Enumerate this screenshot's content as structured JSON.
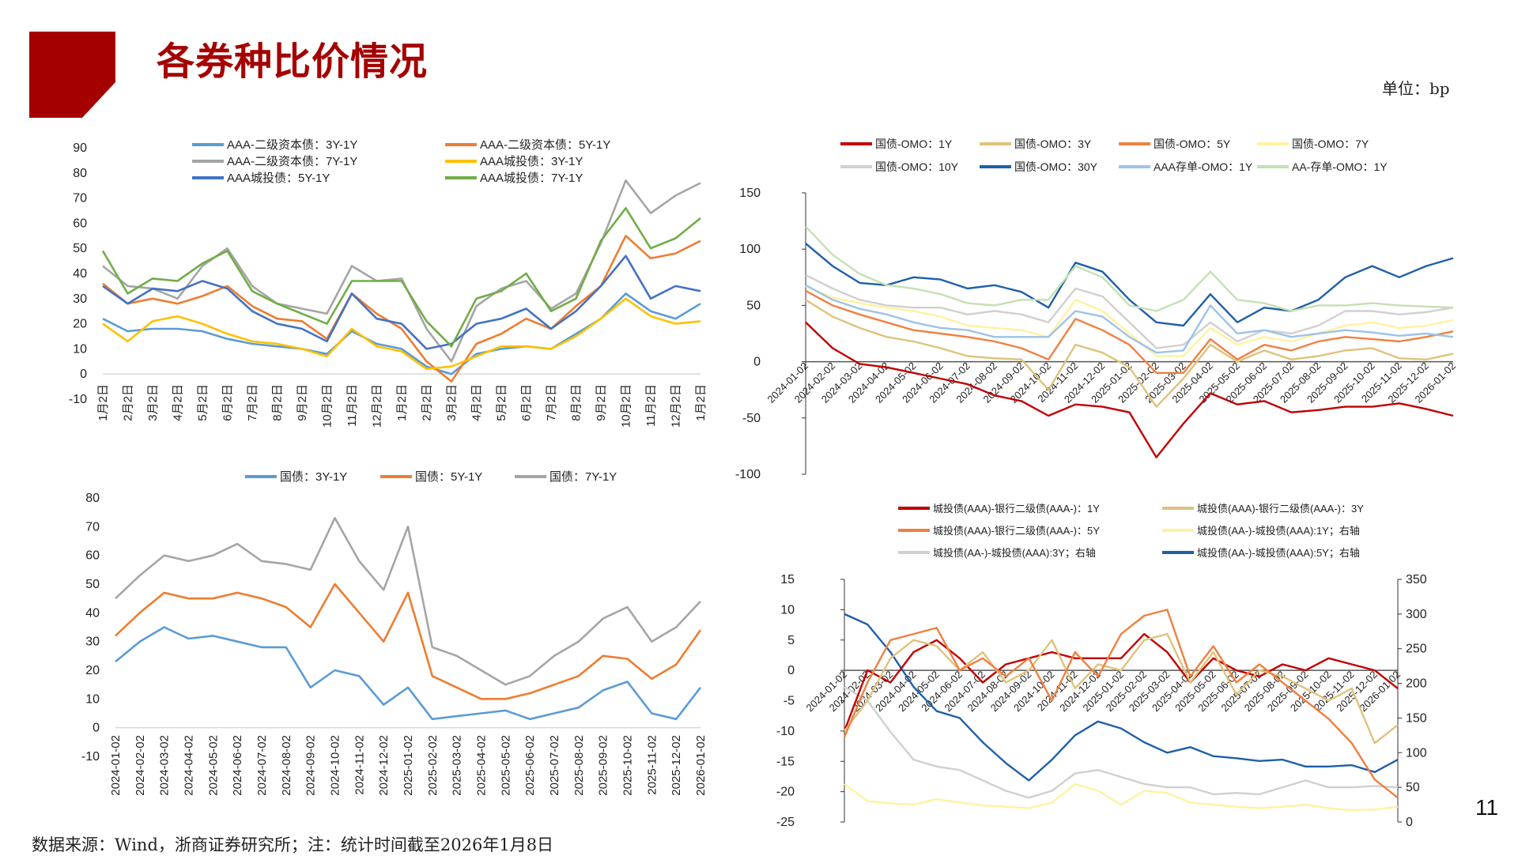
{
  "header": {
    "title": "各券种比价情况",
    "unit": "单位：bp"
  },
  "footer": {
    "source": "数据来源：Wind，浙商证券研究所；注：统计时间截至2026年1月8日",
    "page_number": "11"
  },
  "brand_color": "#a50000",
  "chart_data": [
    {
      "type": "line",
      "x": [
        "1月2日",
        "2月2日",
        "3月2日",
        "4月2日",
        "5月2日",
        "6月2日",
        "7月2日",
        "8月2日",
        "9月2日",
        "10月2日",
        "11月2日",
        "12月2日",
        "1月2日",
        "2月2日",
        "3月2日",
        "4月2日",
        "5月2日",
        "6月2日",
        "7月2日",
        "8月2日",
        "9月2日",
        "10月2日",
        "11月2日",
        "12月2日",
        "1月2日"
      ],
      "ylim": [
        -10,
        90
      ],
      "grid": false,
      "legend": "top",
      "series": [
        {
          "name": "AAA-二级资本债：3Y-1Y",
          "color": "#5b9bd5",
          "values": [
            22,
            17,
            18,
            18,
            17,
            14,
            12,
            11,
            10,
            8,
            17,
            12,
            10,
            3,
            0,
            8,
            10,
            11,
            10,
            16,
            22,
            32,
            25,
            22,
            28
          ]
        },
        {
          "name": "AAA-二级资本债：5Y-1Y",
          "color": "#ed7d31",
          "values": [
            36,
            28,
            30,
            28,
            31,
            35,
            27,
            22,
            21,
            14,
            32,
            24,
            18,
            5,
            -3,
            12,
            16,
            22,
            18,
            27,
            35,
            55,
            46,
            48,
            53
          ]
        },
        {
          "name": "AAA-二级资本债：7Y-1Y",
          "color": "#a5a5a5",
          "values": [
            43,
            35,
            34,
            30,
            43,
            50,
            35,
            28,
            26,
            24,
            43,
            37,
            38,
            18,
            5,
            27,
            34,
            37,
            26,
            32,
            52,
            77,
            64,
            71,
            76
          ]
        },
        {
          "name": "AAA城投债：3Y-1Y",
          "color": "#ffc000",
          "values": [
            20,
            13,
            21,
            23,
            20,
            16,
            13,
            12,
            10,
            7,
            18,
            11,
            9,
            2,
            3,
            7,
            11,
            11,
            10,
            15,
            22,
            30,
            23,
            20,
            21
          ]
        },
        {
          "name": "AAA城投债：5Y-1Y",
          "color": "#4472c4",
          "values": [
            35,
            28,
            34,
            33,
            37,
            34,
            25,
            20,
            18,
            13,
            32,
            22,
            20,
            10,
            12,
            20,
            22,
            26,
            18,
            25,
            35,
            47,
            30,
            35,
            33
          ]
        },
        {
          "name": "AAA城投债：7Y-1Y",
          "color": "#70ad47",
          "values": [
            49,
            32,
            38,
            37,
            44,
            49,
            33,
            28,
            24,
            20,
            37,
            37,
            37,
            21,
            11,
            30,
            33,
            40,
            25,
            30,
            53,
            66,
            50,
            54,
            62
          ]
        }
      ]
    },
    {
      "type": "line",
      "x": [
        "2024-01-02",
        "2024-02-02",
        "2024-03-02",
        "2024-04-02",
        "2024-05-02",
        "2024-06-02",
        "2024-07-02",
        "2024-08-02",
        "2024-09-02",
        "2024-10-02",
        "2024-11-02",
        "2024-12-02",
        "2025-01-02",
        "2025-02-02",
        "2025-03-02",
        "2025-04-02",
        "2025-05-02",
        "2025-06-02",
        "2025-07-02",
        "2025-08-02",
        "2025-09-02",
        "2025-10-02",
        "2025-11-02",
        "2025-12-02",
        "2026-01-02"
      ],
      "ylim": [
        -100,
        150
      ],
      "grid": false,
      "legend": "top",
      "series": [
        {
          "name": "国债-OMO：1Y",
          "color": "#c00000",
          "values": [
            35,
            12,
            -2,
            -5,
            -10,
            -15,
            -20,
            -30,
            -35,
            -48,
            -38,
            -40,
            -45,
            -85,
            -55,
            -28,
            -38,
            -35,
            -45,
            -43,
            -40,
            -40,
            -37,
            -42,
            -48
          ]
        },
        {
          "name": "国债-OMO：3Y",
          "color": "#dfc27d",
          "values": [
            55,
            40,
            30,
            22,
            18,
            12,
            5,
            3,
            2,
            -25,
            15,
            8,
            -5,
            -40,
            -15,
            15,
            0,
            10,
            2,
            5,
            10,
            12,
            3,
            2,
            7
          ]
        },
        {
          "name": "国债-OMO：5Y",
          "color": "#f08040",
          "values": [
            63,
            50,
            42,
            35,
            28,
            25,
            22,
            18,
            12,
            2,
            38,
            28,
            15,
            -10,
            -10,
            20,
            2,
            15,
            10,
            18,
            22,
            20,
            18,
            22,
            27
          ]
        },
        {
          "name": "国债-OMO：7Y",
          "color": "#fff2a0",
          "values": [
            67,
            57,
            52,
            48,
            45,
            40,
            32,
            30,
            28,
            22,
            55,
            45,
            25,
            5,
            5,
            30,
            15,
            22,
            18,
            25,
            32,
            35,
            30,
            32,
            37
          ]
        },
        {
          "name": "国债-OMO：10Y",
          "color": "#d0d0d0",
          "values": [
            77,
            65,
            55,
            50,
            48,
            48,
            42,
            45,
            42,
            35,
            65,
            58,
            35,
            12,
            15,
            35,
            18,
            28,
            25,
            32,
            45,
            45,
            42,
            44,
            48
          ]
        },
        {
          "name": "国债-OMO：30Y",
          "color": "#1f5fa8",
          "values": [
            105,
            85,
            70,
            68,
            75,
            73,
            65,
            68,
            62,
            48,
            88,
            80,
            55,
            35,
            32,
            60,
            35,
            48,
            45,
            55,
            75,
            85,
            75,
            85,
            92
          ]
        },
        {
          "name": "AAA存单-OMO：1Y",
          "color": "#9dc3e6",
          "values": [
            68,
            55,
            47,
            42,
            35,
            30,
            28,
            22,
            22,
            22,
            45,
            40,
            22,
            8,
            10,
            50,
            25,
            28,
            22,
            25,
            28,
            26,
            23,
            25,
            22
          ]
        },
        {
          "name": "AA-存单-OMO：1Y",
          "color": "#c5e0b4",
          "values": [
            120,
            95,
            78,
            68,
            65,
            60,
            52,
            50,
            55,
            55,
            85,
            75,
            50,
            45,
            55,
            80,
            55,
            52,
            45,
            50,
            50,
            52,
            50,
            49,
            48
          ]
        }
      ]
    },
    {
      "type": "line",
      "x": [
        "2024-01-02",
        "2024-02-02",
        "2024-03-02",
        "2024-04-02",
        "2024-05-02",
        "2024-06-02",
        "2024-07-02",
        "2024-08-02",
        "2024-09-02",
        "2024-10-02",
        "2024-11-02",
        "2024-12-02",
        "2025-01-02",
        "2025-02-02",
        "2025-03-02",
        "2025-04-02",
        "2025-05-02",
        "2025-06-02",
        "2025-07-02",
        "2025-08-02",
        "2025-09-02",
        "2025-10-02",
        "2025-11-02",
        "2025-12-02",
        "2026-01-02"
      ],
      "ylim": [
        -10,
        80
      ],
      "grid": false,
      "legend": "top",
      "series": [
        {
          "name": "国债：3Y-1Y",
          "color": "#5b9bd5",
          "values": [
            23,
            30,
            35,
            31,
            32,
            30,
            28,
            28,
            14,
            20,
            18,
            8,
            14,
            3,
            4,
            5,
            6,
            3,
            5,
            7,
            13,
            16,
            5,
            3,
            14
          ]
        },
        {
          "name": "国债：5Y-1Y",
          "color": "#ed7d31",
          "values": [
            32,
            40,
            47,
            45,
            45,
            47,
            45,
            42,
            35,
            50,
            40,
            30,
            47,
            18,
            14,
            10,
            10,
            12,
            15,
            18,
            25,
            24,
            17,
            22,
            34
          ]
        },
        {
          "name": "国债：7Y-1Y",
          "color": "#a5a5a5",
          "values": [
            45,
            53,
            60,
            58,
            60,
            64,
            58,
            57,
            55,
            73,
            58,
            48,
            70,
            28,
            25,
            20,
            15,
            18,
            25,
            30,
            38,
            42,
            30,
            35,
            44
          ]
        }
      ]
    },
    {
      "type": "line",
      "x": [
        "2024-01-02",
        "2024-02-02",
        "2024-03-02",
        "2024-04-02",
        "2024-05-02",
        "2024-06-02",
        "2024-07-02",
        "2024-08-02",
        "2024-09-02",
        "2024-10-02",
        "2024-11-02",
        "2024-12-02",
        "2025-01-02",
        "2025-02-02",
        "2025-03-02",
        "2025-04-02",
        "2025-05-02",
        "2025-06-02",
        "2025-07-02",
        "2025-08-02",
        "2025-09-02",
        "2025-10-02",
        "2025-11-02",
        "2025-12-02",
        "2026-01-02"
      ],
      "ylim": [
        -25,
        15
      ],
      "y2lim": [
        0,
        350
      ],
      "grid": false,
      "legend": "top",
      "series": [
        {
          "name": "城投债(AAA)-银行二级债(AAA-)：1Y",
          "color": "#c00000",
          "axis": "left",
          "values": [
            -10,
            0,
            -2,
            3,
            5,
            2,
            -2,
            1,
            2,
            3,
            2,
            2,
            2,
            6,
            3,
            -2,
            2,
            0,
            -1,
            1,
            0,
            2,
            1,
            0,
            -3
          ]
        },
        {
          "name": "城投债(AAA)-银行二级债(AAA-)：3Y",
          "color": "#dfc27d",
          "axis": "left",
          "values": [
            -10,
            -5,
            2,
            5,
            4,
            0,
            3,
            -2,
            0,
            5,
            -3,
            1,
            0,
            5,
            6,
            -2,
            3,
            -4,
            0,
            -1,
            -3,
            -5,
            -3,
            -12,
            -9
          ]
        },
        {
          "name": "城投债(AAA)-银行二级债(AAA-)：5Y",
          "color": "#f08040",
          "axis": "left",
          "values": [
            -11,
            -2,
            5,
            6,
            7,
            0,
            2,
            -1,
            2,
            -5,
            3,
            -1,
            6,
            9,
            10,
            -1,
            4,
            -2,
            1,
            -2,
            -5,
            -8,
            -12,
            -18,
            -21
          ]
        },
        {
          "name": "城投债(AA-)-城投债(AAA):1Y；右轴",
          "color": "#fff2a0",
          "axis": "right",
          "values": [
            55,
            30,
            27,
            25,
            33,
            28,
            24,
            22,
            20,
            28,
            55,
            45,
            25,
            45,
            42,
            28,
            25,
            22,
            20,
            22,
            25,
            20,
            17,
            18,
            22
          ]
        },
        {
          "name": "城投债(AA-)-城投债(AAA):3Y；右轴",
          "color": "#d0d0d0",
          "axis": "right",
          "values": [
            195,
            175,
            130,
            90,
            80,
            75,
            60,
            45,
            35,
            45,
            70,
            75,
            65,
            55,
            50,
            50,
            40,
            42,
            40,
            50,
            60,
            50,
            50,
            52,
            50
          ]
        },
        {
          "name": "城投债(AA-)-城投债(AAA):5Y；右轴",
          "color": "#1f5fa8",
          "axis": "right",
          "values": [
            300,
            285,
            245,
            195,
            160,
            150,
            115,
            85,
            60,
            90,
            125,
            145,
            135,
            115,
            100,
            108,
            95,
            92,
            88,
            90,
            80,
            80,
            82,
            72,
            90
          ]
        }
      ]
    }
  ]
}
